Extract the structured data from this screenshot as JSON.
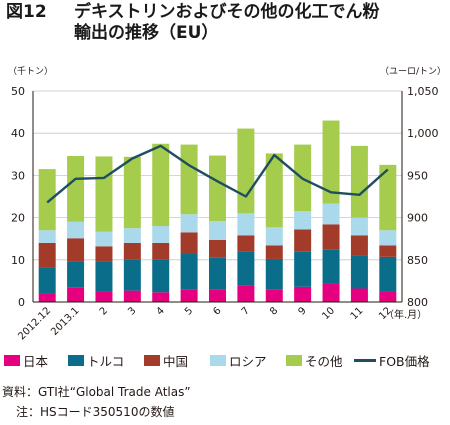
{
  "title": {
    "number": "図12",
    "line1": "デキストリンおよびその他の化工でん粉",
    "line2": "輸出の推移（EU）"
  },
  "chart_data": {
    "type": "bar",
    "stacked": true,
    "left_unit": "（千トン）",
    "right_unit": "（ユーロ/トン）",
    "x_unit": "（年.月）",
    "categories": [
      "2012.12",
      "2013.1",
      "2",
      "3",
      "4",
      "5",
      "6",
      "7",
      "8",
      "9",
      "10",
      "11",
      "12"
    ],
    "ylim": [
      0,
      50
    ],
    "yticks": [
      "0",
      "10",
      "20",
      "30",
      "40",
      "50"
    ],
    "y2lim": [
      800,
      1050
    ],
    "y2ticks": [
      "800",
      "850",
      "900",
      "950",
      "1,000",
      "1,050"
    ],
    "series": [
      {
        "name": "日本",
        "color": "#e4007f",
        "values": [
          2.0,
          3.5,
          2.5,
          2.7,
          2.3,
          3.0,
          3.0,
          4.0,
          3.0,
          3.6,
          4.4,
          3.2,
          2.5
        ]
      },
      {
        "name": "トルコ",
        "color": "#0a6e8a",
        "values": [
          6.2,
          6.0,
          7.0,
          7.3,
          7.7,
          8.5,
          7.5,
          8.0,
          7.2,
          8.3,
          8.0,
          7.8,
          8.2
        ]
      },
      {
        "name": "中国",
        "color": "#a33b2a",
        "values": [
          5.8,
          5.6,
          3.7,
          4.0,
          4.0,
          5.0,
          4.2,
          3.8,
          3.2,
          5.3,
          6.0,
          4.8,
          2.7
        ]
      },
      {
        "name": "ロシア",
        "color": "#a9d9ea",
        "values": [
          3.0,
          3.9,
          3.5,
          3.5,
          4.0,
          4.3,
          4.5,
          5.2,
          4.3,
          4.3,
          4.9,
          4.2,
          3.6
        ]
      },
      {
        "name": "その他",
        "color": "#a6cc4e",
        "values": [
          14.5,
          15.6,
          17.8,
          16.9,
          19.5,
          16.5,
          15.5,
          20.1,
          17.5,
          15.8,
          19.7,
          17.0,
          15.5
        ]
      }
    ],
    "line_series": {
      "name": "FOB価格",
      "color": "#1f4e5f",
      "axis": "right",
      "values": [
        918,
        946,
        947,
        970,
        985,
        962,
        943,
        925,
        974,
        946,
        930,
        927,
        957
      ]
    },
    "legend_position": "bottom"
  },
  "source": "資料：GTI社“Global Trade Atlas”",
  "note": "注：HSコード350510の数値"
}
